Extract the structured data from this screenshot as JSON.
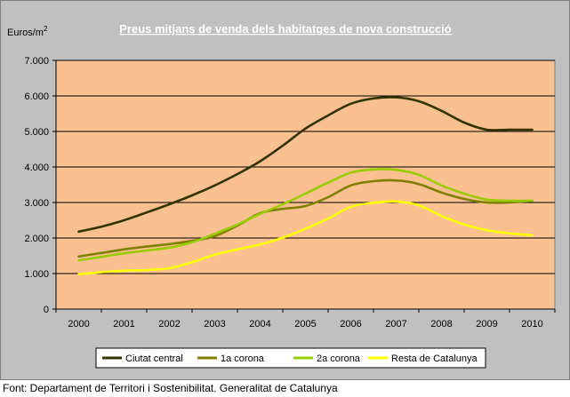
{
  "chart_data": {
    "type": "line",
    "title": "Preus mitjans de venda dels habitatges de nova construcció",
    "ylabel": "Euros/m",
    "ylabel_sup": "2",
    "xlabel": "",
    "categories": [
      "2000",
      "2001",
      "2002",
      "2003",
      "2004",
      "2005",
      "2006",
      "2007",
      "2008",
      "2009",
      "2010"
    ],
    "x": [
      2000,
      2000.5,
      2001,
      2001.5,
      2002,
      2002.5,
      2003,
      2003.5,
      2004,
      2004.5,
      2005,
      2005.5,
      2006,
      2006.5,
      2007,
      2007.5,
      2008,
      2008.5,
      2009,
      2009.5,
      2010
    ],
    "ylim": [
      0,
      7000
    ],
    "yticks": [
      0,
      1000,
      2000,
      3000,
      4000,
      5000,
      6000,
      7000
    ],
    "ytick_labels": [
      "0",
      "1.000",
      "2.000",
      "3.000",
      "4.000",
      "5.000",
      "6.000",
      "7.000"
    ],
    "grid": true,
    "legend_position": "bottom",
    "plot_background": "#fac090",
    "series": [
      {
        "name": "Ciutat central",
        "color": "#333300",
        "values": [
          2180,
          2320,
          2500,
          2720,
          2950,
          3200,
          3480,
          3800,
          4160,
          4600,
          5080,
          5450,
          5780,
          5930,
          5960,
          5850,
          5580,
          5250,
          5050,
          5050,
          5050
        ]
      },
      {
        "name": "1a corona",
        "color": "#808000",
        "values": [
          1480,
          1580,
          1680,
          1760,
          1830,
          1920,
          2050,
          2350,
          2700,
          2820,
          2900,
          3150,
          3480,
          3600,
          3620,
          3520,
          3280,
          3100,
          3000,
          3000,
          3050
        ]
      },
      {
        "name": "2a corona",
        "color": "#99cc00",
        "values": [
          1370,
          1470,
          1570,
          1650,
          1730,
          1880,
          2120,
          2380,
          2680,
          2950,
          3250,
          3560,
          3840,
          3930,
          3920,
          3780,
          3480,
          3250,
          3080,
          3050,
          3050
        ]
      },
      {
        "name": "Resta de Catalunya",
        "color": "#ffff00",
        "values": [
          980,
          1040,
          1080,
          1100,
          1150,
          1320,
          1530,
          1680,
          1820,
          2010,
          2260,
          2550,
          2880,
          2990,
          3030,
          2920,
          2620,
          2380,
          2220,
          2130,
          2080
        ]
      }
    ]
  },
  "source_text": "Font: Departament de Territori i Sostenibilitat. Generalitat de Catalunya"
}
